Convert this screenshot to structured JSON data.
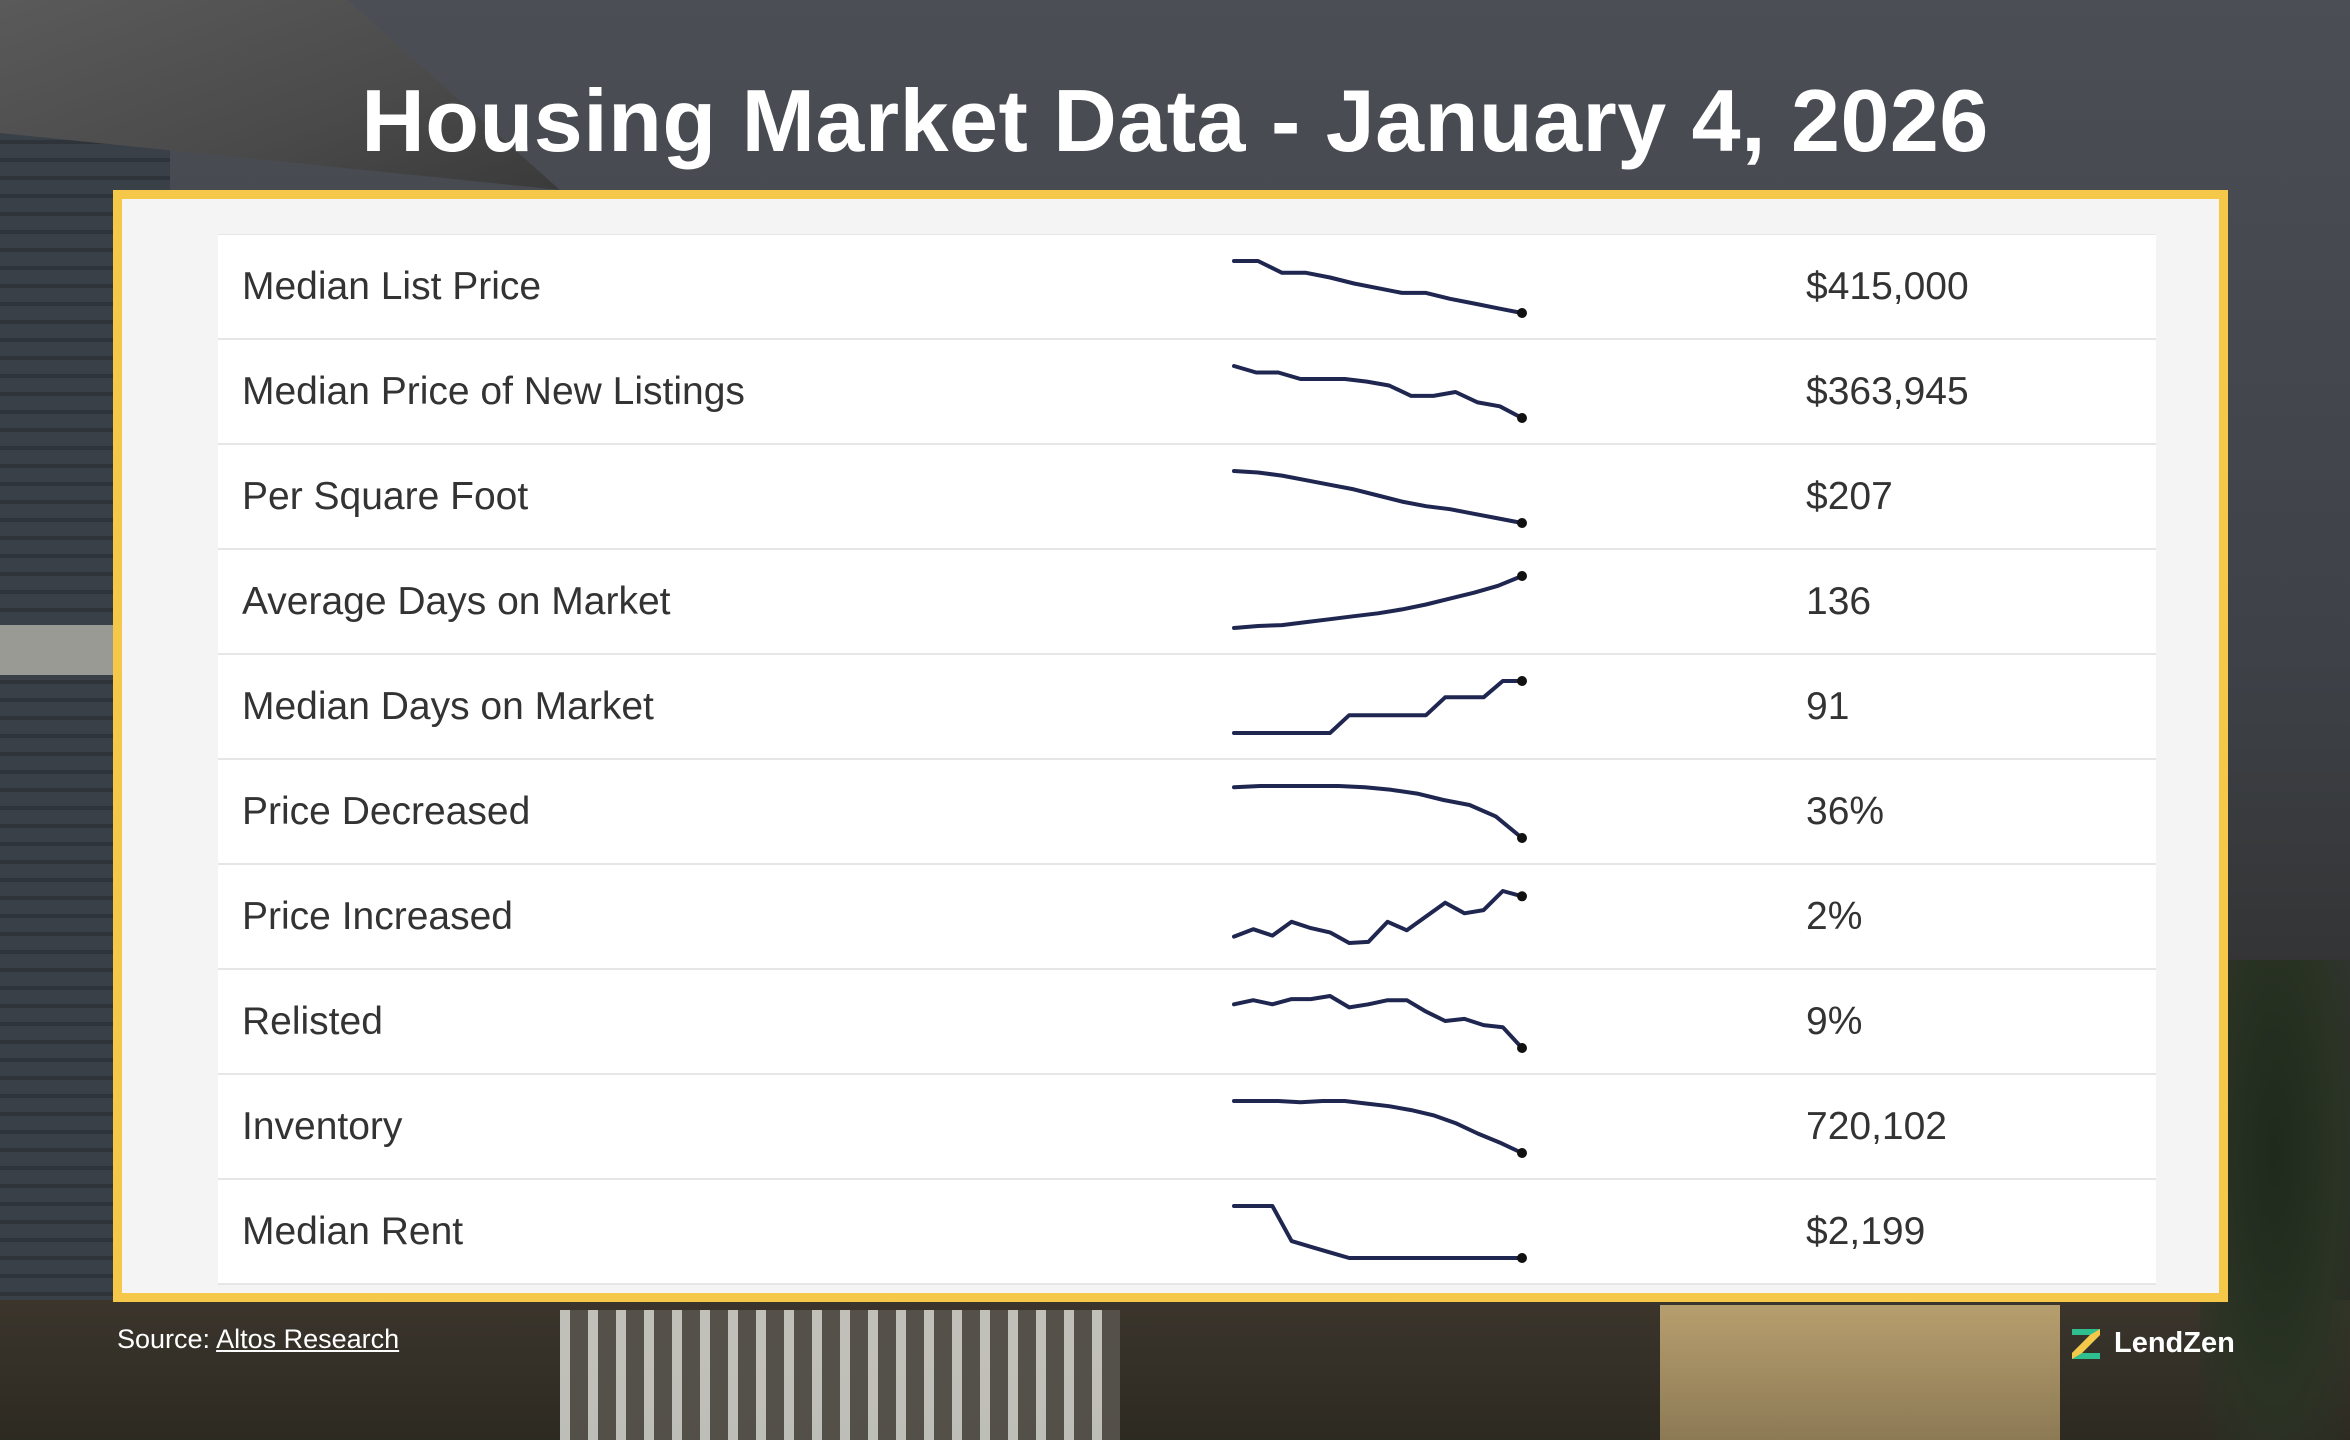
{
  "title": "Housing Market Data - January 4, 2026",
  "colors": {
    "frame": "#f5c84a",
    "spark_line": "#1f2650",
    "text": "#333333"
  },
  "rows": [
    {
      "label": "Median List Price",
      "value": "$415,000",
      "trend": [
        10,
        10,
        9,
        9,
        8.6,
        8.1,
        7.7,
        7.3,
        7.3,
        6.8,
        6.4,
        6.0,
        5.6
      ]
    },
    {
      "label": "Median Price of New Listings",
      "value": "$363,945",
      "trend": [
        10,
        9.5,
        9.5,
        9,
        9,
        9,
        8.8,
        8.5,
        7.7,
        7.7,
        8,
        7.2,
        6.9,
        6.0
      ]
    },
    {
      "label": "Per Square Foot",
      "value": "$207",
      "trend": [
        10,
        9.9,
        9.7,
        9.4,
        9.1,
        8.8,
        8.4,
        8.0,
        7.7,
        7.5,
        7.2,
        6.9,
        6.6
      ]
    },
    {
      "label": "Average Days on Market",
      "value": "136",
      "trend": [
        1.0,
        1.2,
        1.3,
        1.6,
        1.9,
        2.2,
        2.5,
        2.9,
        3.4,
        4.0,
        4.6,
        5.3,
        6.3
      ]
    },
    {
      "label": "Median Days on Market",
      "value": "91",
      "trend": [
        1,
        1,
        1,
        1,
        1,
        1,
        2.2,
        2.2,
        2.2,
        2.2,
        2.2,
        3.4,
        3.4,
        3.4,
        4.5,
        4.5
      ]
    },
    {
      "label": "Price Decreased",
      "value": "36%",
      "trend": [
        10,
        10.1,
        10.1,
        10.1,
        10.1,
        10,
        9.8,
        9.5,
        9.0,
        8.6,
        7.7,
        6.0
      ]
    },
    {
      "label": "Price Increased",
      "value": "2%",
      "trend": [
        1.2,
        1.9,
        1.3,
        2.6,
        2.0,
        1.6,
        0.6,
        0.7,
        2.6,
        1.8,
        3.1,
        4.4,
        3.4,
        3.7,
        5.5,
        5.0
      ]
    },
    {
      "label": "Relisted",
      "value": "9%",
      "trend": [
        10,
        10.4,
        10,
        10.5,
        10.5,
        10.8,
        9.7,
        10,
        10.4,
        10.4,
        9.3,
        8.4,
        8.6,
        8.0,
        7.8,
        5.8
      ]
    },
    {
      "label": "Inventory",
      "value": "720,102",
      "trend": [
        10,
        10,
        10,
        9.9,
        10,
        10,
        9.8,
        9.6,
        9.3,
        8.9,
        8.3,
        7.5,
        6.8,
        6.0
      ]
    },
    {
      "label": "Median Rent",
      "value": "$2,199",
      "trend": [
        10,
        10,
        10,
        7.5,
        7.1,
        6.7,
        6.3,
        6.3,
        6.3,
        6.3,
        6.3,
        6.3,
        6.3,
        6.3,
        6.3,
        6.3
      ]
    }
  ],
  "source": {
    "prefix": "Source: ",
    "link_text": "Altos Research"
  },
  "brand": {
    "name": "LendZen",
    "logo_icon": "lendzen-z-icon"
  }
}
